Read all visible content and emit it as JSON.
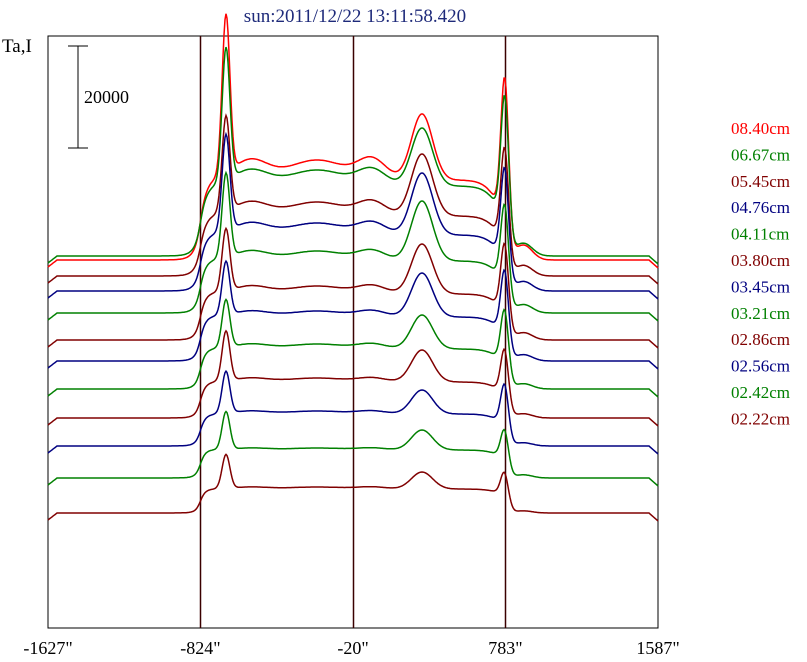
{
  "chart_data": {
    "type": "line",
    "title": "sun:2011/12/22 13:11:58.420",
    "ylabel": "Ta,I",
    "scale_bar_label": "20000",
    "x_ticks": [
      "-1627\"",
      "-824\"",
      "-20\"",
      "783\"",
      "1587\""
    ],
    "x_tick_values": [
      -1627,
      -824,
      -20,
      783,
      1587
    ],
    "vlines": [
      -824,
      -20,
      783
    ],
    "xlim": [
      -1627,
      1587
    ],
    "series": [
      {
        "name": "08.40cm",
        "color": "#ff0000",
        "base": 260,
        "edge": 36,
        "wing": 44,
        "mid": 20,
        "center": 66,
        "pk1": 160,
        "pk2": 150,
        "sh": 14
      },
      {
        "name": "06.67cm",
        "color": "#008000",
        "base": 256,
        "edge": 32,
        "wing": 38,
        "mid": 16,
        "center": 58,
        "pk1": 134,
        "pk2": 132,
        "sh": 12
      },
      {
        "name": "05.45cm",
        "color": "#800000",
        "base": 276,
        "edge": 30,
        "wing": 30,
        "mid": 14,
        "center": 62,
        "pk1": 96,
        "pk2": 103,
        "sh": 10
      },
      {
        "name": "04.76cm",
        "color": "#000080",
        "base": 291,
        "edge": 30,
        "wing": 26,
        "mid": 12,
        "center": 62,
        "pk1": 97,
        "pk2": 99,
        "sh": 9
      },
      {
        "name": "04.11cm",
        "color": "#008000",
        "base": 313,
        "edge": 30,
        "wing": 22,
        "mid": 10,
        "center": 60,
        "pk1": 85,
        "pk2": 85,
        "sh": 8
      },
      {
        "name": "03.80cm",
        "color": "#800000",
        "base": 340,
        "edge": 28,
        "wing": 18,
        "mid": 8,
        "center": 50,
        "pk1": 63,
        "pk2": 75,
        "sh": 7
      },
      {
        "name": "03.45cm",
        "color": "#000080",
        "base": 361,
        "edge": 28,
        "wing": 16,
        "mid": 6,
        "center": 44,
        "pk1": 54,
        "pk2": 70,
        "sh": 6
      },
      {
        "name": "03.21cm",
        "color": "#008000",
        "base": 389,
        "edge": 26,
        "wing": 14,
        "mid": 5,
        "center": 34,
        "pk1": 48,
        "pk2": 60,
        "sh": 5
      },
      {
        "name": "02.86cm",
        "color": "#800000",
        "base": 418,
        "edge": 24,
        "wing": 12,
        "mid": 4,
        "center": 32,
        "pk1": 50,
        "pk2": 51,
        "sh": 4
      },
      {
        "name": "02.56cm",
        "color": "#000080",
        "base": 446,
        "edge": 22,
        "wing": 10,
        "mid": 3,
        "center": 24,
        "pk1": 42,
        "pk2": 46,
        "sh": 3
      },
      {
        "name": "02.42cm",
        "color": "#008000",
        "base": 478,
        "edge": 20,
        "wing": 8,
        "mid": 2,
        "center": 20,
        "pk1": 38,
        "pk2": 34,
        "sh": 3
      },
      {
        "name": "02.22cm",
        "color": "#800000",
        "base": 513,
        "edge": 18,
        "wing": 6,
        "mid": 2,
        "center": 17,
        "pk1": 34,
        "pk2": 28,
        "sh": 2
      }
    ],
    "grid": false,
    "legend_position": "right"
  }
}
